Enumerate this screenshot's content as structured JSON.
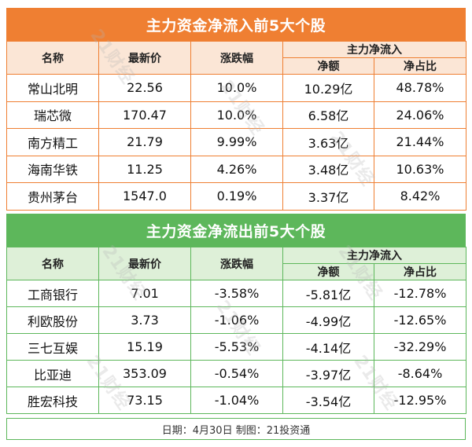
{
  "inflow": {
    "title": "主力资金净流入前5大个股",
    "headers": {
      "name": "名称",
      "price": "最新价",
      "change": "涨跌幅",
      "main": "主力净流入",
      "net": "净额",
      "ratio": "净占比"
    },
    "rows": [
      {
        "name": "常山北明",
        "price": "22.56",
        "change": "10.0%",
        "net": "10.29亿",
        "ratio": "48.78%"
      },
      {
        "name": "瑞芯微",
        "price": "170.47",
        "change": "10.0%",
        "net": "6.58亿",
        "ratio": "24.06%"
      },
      {
        "name": "南方精工",
        "price": "21.79",
        "change": "9.99%",
        "net": "3.63亿",
        "ratio": "21.44%"
      },
      {
        "name": "海南华铁",
        "price": "11.25",
        "change": "4.26%",
        "net": "3.48亿",
        "ratio": "10.63%"
      },
      {
        "name": "贵州茅台",
        "price": "1547.0",
        "change": "0.19%",
        "net": "3.37亿",
        "ratio": "8.42%"
      }
    ]
  },
  "outflow": {
    "title": "主力资金净流出前5大个股",
    "headers": {
      "name": "名称",
      "price": "最新价",
      "change": "涨跌幅",
      "main": "主力净流入",
      "net": "净额",
      "ratio": "净占比"
    },
    "rows": [
      {
        "name": "工商银行",
        "price": "7.01",
        "change": "-3.58%",
        "net": "-5.81亿",
        "ratio": "-12.78%"
      },
      {
        "name": "利欧股份",
        "price": "3.73",
        "change": "-1.06%",
        "net": "-4.99亿",
        "ratio": "-12.65%"
      },
      {
        "name": "三七互娱",
        "price": "15.19",
        "change": "-5.53%",
        "net": "-4.14亿",
        "ratio": "-32.29%"
      },
      {
        "name": "比亚迪",
        "price": "353.09",
        "change": "-0.54%",
        "net": "-3.97亿",
        "ratio": "-8.64%"
      },
      {
        "name": "胜宏科技",
        "price": "73.15",
        "change": "-1.04%",
        "net": "-3.54亿",
        "ratio": "-12.95%"
      }
    ]
  },
  "footer": "日期：4月30日 制图：21投资通",
  "watermark": "21财经",
  "colors": {
    "inflow": "#ef7f32",
    "outflow": "#5db75b"
  }
}
